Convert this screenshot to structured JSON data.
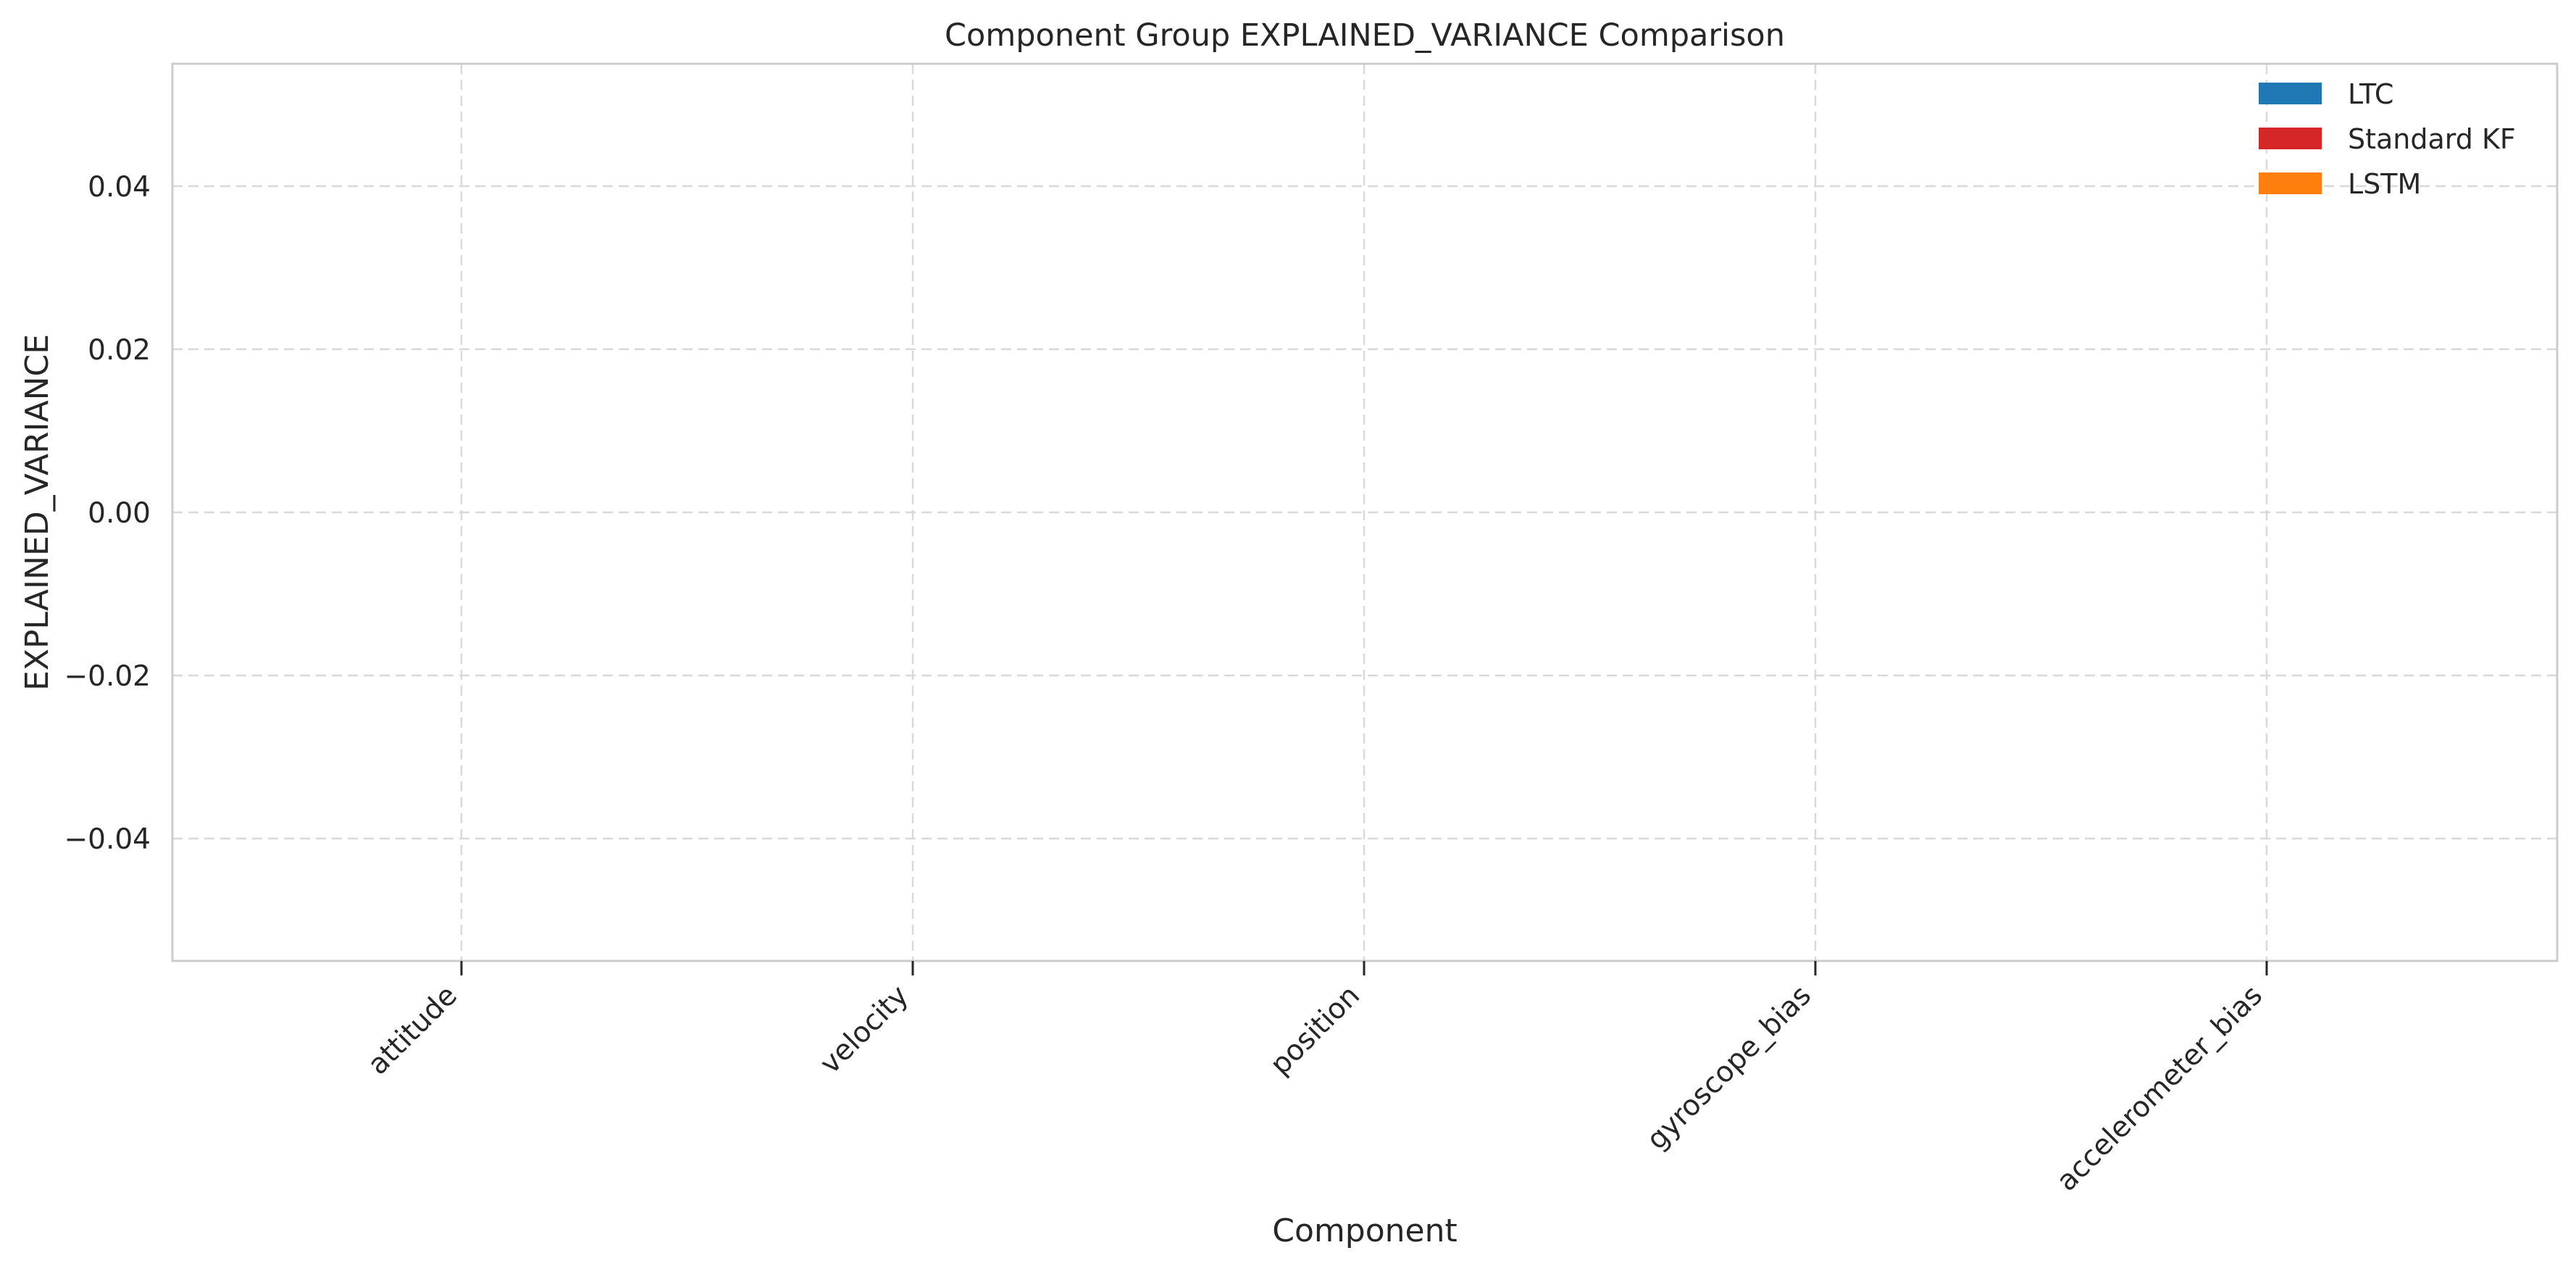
{
  "chart_data": {
    "type": "bar",
    "title": "Component Group EXPLAINED_VARIANCE Comparison",
    "xlabel": "Component",
    "ylabel": "EXPLAINED_VARIANCE",
    "categories": [
      "attitude",
      "velocity",
      "position",
      "gyroscope_bias",
      "accelerometer_bias"
    ],
    "series": [
      {
        "name": "LTC",
        "color": "#1f77b4",
        "values": [
          null,
          null,
          null,
          null,
          null
        ]
      },
      {
        "name": "Standard KF",
        "color": "#d62728",
        "values": [
          null,
          null,
          null,
          null,
          null
        ]
      },
      {
        "name": "LSTM",
        "color": "#ff7f0e",
        "values": [
          null,
          null,
          null,
          null,
          null
        ]
      }
    ],
    "ylim": [
      -0.055,
      0.055
    ],
    "yticks": [
      -0.04,
      -0.02,
      0.0,
      0.02,
      0.04
    ],
    "ytick_labels": [
      "−0.04",
      "−0.02",
      "0.00",
      "0.02",
      "0.04"
    ],
    "grid": true,
    "legend_position": "top-right"
  }
}
